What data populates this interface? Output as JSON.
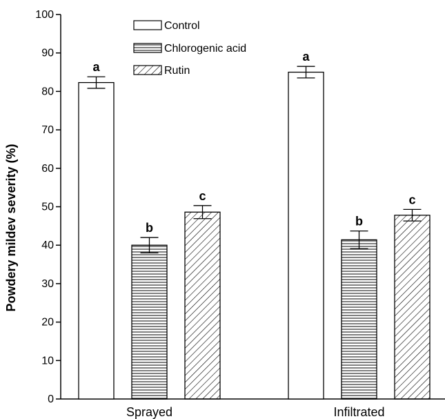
{
  "chart_data": {
    "type": "bar",
    "title": "",
    "xlabel": "",
    "ylabel": "Powdery mildev severity (%)",
    "ylim": [
      0,
      100
    ],
    "yticks": [
      0,
      10,
      20,
      30,
      40,
      50,
      60,
      70,
      80,
      90,
      100
    ],
    "categories": [
      "Sprayed",
      "Infiltrated"
    ],
    "grid": false,
    "legend_position": "top-center",
    "series": [
      {
        "name": "Control",
        "pattern": "none",
        "values": [
          82.3,
          85.0
        ],
        "errors": [
          1.5,
          1.5
        ],
        "labels": [
          "a",
          "a"
        ]
      },
      {
        "name": "Chlorogenic acid",
        "pattern": "horizontal-lines",
        "values": [
          40.0,
          41.4
        ],
        "errors": [
          2.0,
          2.3
        ],
        "labels": [
          "b",
          "b"
        ]
      },
      {
        "name": "Rutin",
        "pattern": "diagonal-hatch",
        "values": [
          48.6,
          47.8
        ],
        "errors": [
          1.7,
          1.5
        ],
        "labels": [
          "c",
          "c"
        ]
      }
    ]
  }
}
